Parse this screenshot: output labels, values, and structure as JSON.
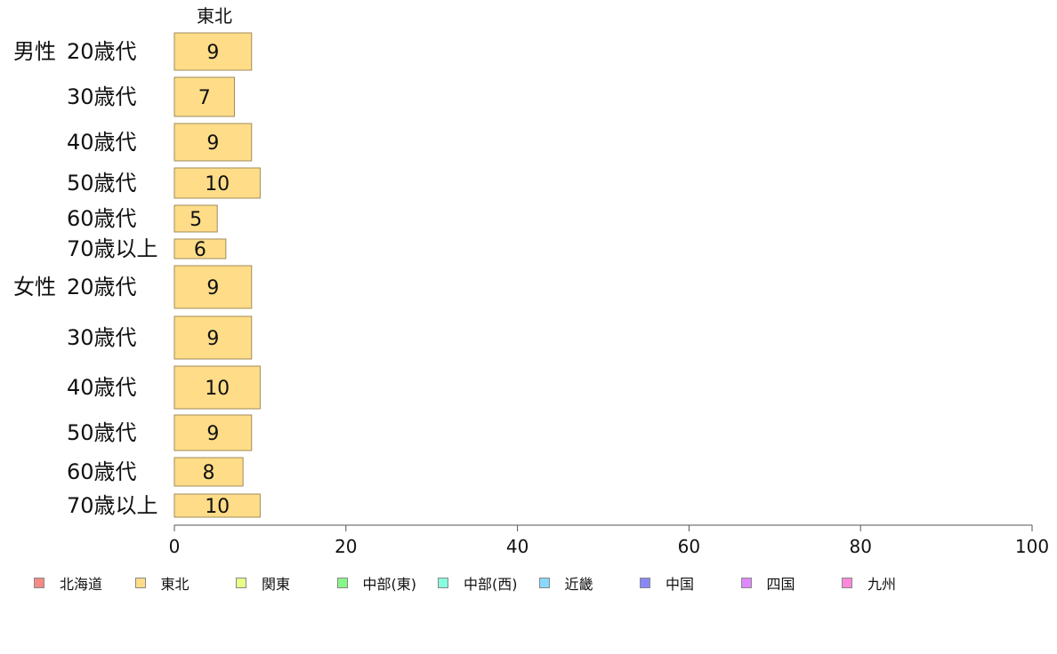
{
  "chart_data": {
    "type": "bar",
    "orientation": "horizontal",
    "column_header": "東北",
    "groups": [
      {
        "label": "男性",
        "categories": [
          "20歳代",
          "30歳代",
          "40歳代",
          "50歳代",
          "60歳代",
          "70歳以上"
        ]
      },
      {
        "label": "女性",
        "categories": [
          "20歳代",
          "30歳代",
          "40歳代",
          "50歳代",
          "60歳代",
          "70歳以上"
        ]
      }
    ],
    "series": [
      {
        "name": "東北",
        "color": "#FFDD88",
        "values": [
          9,
          7,
          9,
          10,
          5,
          6,
          9,
          9,
          10,
          9,
          8,
          10
        ],
        "value_labels": [
          "9",
          "7",
          "9",
          "10",
          "5",
          "6",
          "9",
          "9",
          "10",
          "9",
          "8",
          "10"
        ]
      }
    ],
    "xlim": [
      0,
      100
    ],
    "xticks": [
      0,
      20,
      40,
      60,
      80,
      100
    ],
    "xtick_labels": [
      "0",
      "20",
      "40",
      "60",
      "80",
      "100"
    ],
    "grid": false,
    "legend_position": "bottom",
    "legend": [
      {
        "name": "北海道",
        "color": "#F58A84"
      },
      {
        "name": "東北",
        "color": "#FFDD88"
      },
      {
        "name": "関東",
        "color": "#E6FF88"
      },
      {
        "name": "中部(東)",
        "color": "#88F788"
      },
      {
        "name": "中部(西)",
        "color": "#88FFDD"
      },
      {
        "name": "近畿",
        "color": "#88D8FF"
      },
      {
        "name": "中国",
        "color": "#8888F5"
      },
      {
        "name": "四国",
        "color": "#DD88FF"
      },
      {
        "name": "九州",
        "color": "#FF88DD"
      }
    ]
  }
}
